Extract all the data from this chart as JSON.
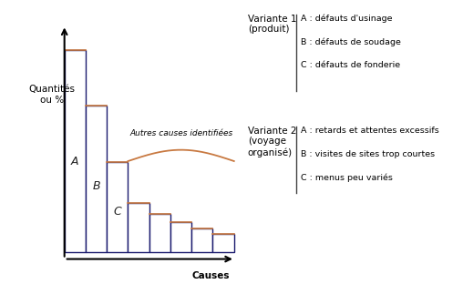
{
  "bar_heights": [
    9.0,
    6.5,
    4.0,
    2.2,
    1.7,
    1.35,
    1.05,
    0.8
  ],
  "bar_labels": [
    "A",
    "B",
    "C",
    "",
    "",
    "",
    "",
    ""
  ],
  "bar_color": "#ffffff",
  "bar_edge_color_outer": "#1a1a6e",
  "bar_edge_color_inner": "#c87941",
  "bar_width": 1.0,
  "ylabel": "Quantités\nou %",
  "xlabel": "Causes",
  "brace_color": "#c87941",
  "brace_label": "Autres causes identifiées",
  "variante1_title": "Variante 1\n(produit)",
  "variante1_items": [
    "A : défauts d'usinage",
    "B : défauts de soudage",
    "C : défauts de fonderie"
  ],
  "variante2_title": "Variante 2\n(voyage\norganisé)",
  "variante2_items": [
    "A : retards et attentes excessifs",
    "B : visites de sites trop courtes",
    "C : menus peu variés"
  ],
  "background_color": "#ffffff",
  "fig_width": 5.08,
  "fig_height": 3.12,
  "dpi": 100
}
